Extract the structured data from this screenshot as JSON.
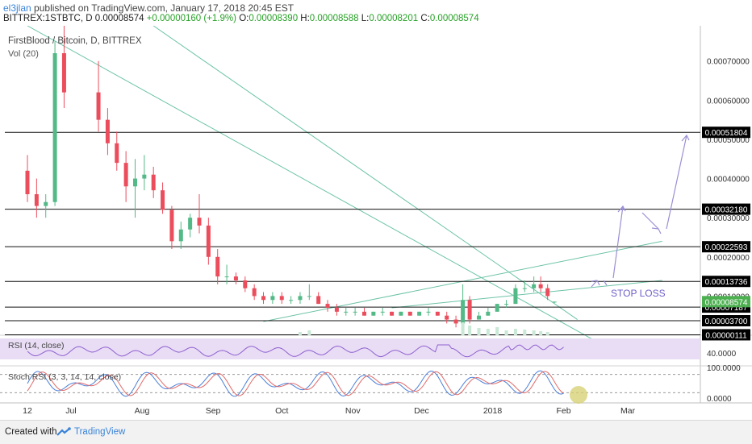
{
  "header": {
    "user": "el3jlan",
    "published": "published on TradingView.com, January 17, 2018 20:45 EST",
    "symbol": "BITTREX:1STBTC, D",
    "price": "0.00008574",
    "change": "+0.00000160 (+1.9%)",
    "o_label": "O:",
    "o": "0.00008390",
    "h_label": "H:",
    "h": "0.00008588",
    "l_label": "L:",
    "l": "0.00008201",
    "c_label": "C:",
    "c": "0.00008574"
  },
  "footer": {
    "created": "Created with",
    "brand": "TradingView"
  },
  "colors": {
    "up": "#53b987",
    "down": "#eb4d5c",
    "trend": "#6cc3a7",
    "arrow": "#9b8fd4",
    "axis_label_bg": "#000000",
    "price_label_bg": "#4caf50",
    "rsi": "#8f5fcf",
    "rsi_band": "#e9ddf5",
    "stoch_k": "#4a7fd8",
    "stoch_d": "#e06a6a",
    "circle": "#d6cf6e"
  },
  "chart_data": [
    {
      "type": "candlestick",
      "title": "FirstBlood / Bitcoin, D, BITTREX",
      "indicator_label": "Vol (20)",
      "x_ticks": [
        "12",
        "Jul",
        "Aug",
        "Sep",
        "Oct",
        "Nov",
        "Dec",
        "2018",
        "Feb",
        "Mar"
      ],
      "y_ticks": [
        "0.00070000",
        "0.00060000",
        "0.00050000",
        "0.00040000",
        "0.00030000",
        "0.00020000",
        "0.00010000"
      ],
      "ylim": [
        0.0,
        0.00079
      ],
      "horizontal_levels": [
        "0.00051804",
        "0.00032180",
        "0.00022593",
        "0.00013736",
        "0.00007187",
        "0.00003700",
        "0.00000111"
      ],
      "last_price": "0.00008574",
      "annotation": "STOP LOSS",
      "ohlc": [
        {
          "date": "Jun 12",
          "o": 0.00042,
          "h": 0.00046,
          "l": 0.00034,
          "c": 0.00036
        },
        {
          "date": "Jun 16",
          "o": 0.00036,
          "h": 0.0004,
          "l": 0.0003,
          "c": 0.00033
        },
        {
          "date": "Jun 20",
          "o": 0.00033,
          "h": 0.00036,
          "l": 0.0003,
          "c": 0.00034
        },
        {
          "date": "Jun 24",
          "o": 0.00034,
          "h": 0.00075,
          "l": 0.00033,
          "c": 0.00072
        },
        {
          "date": "Jun 28",
          "o": 0.00072,
          "h": 0.00079,
          "l": 0.00058,
          "c": 0.00062
        },
        {
          "date": "Jul 2",
          "o": 0.00062,
          "h": 0.0007,
          "l": 0.00052,
          "c": 0.00055
        },
        {
          "date": "Jul 6",
          "o": 0.00055,
          "h": 0.00058,
          "l": 0.00046,
          "c": 0.00049
        },
        {
          "date": "Jul 10",
          "o": 0.00049,
          "h": 0.00052,
          "l": 0.00042,
          "c": 0.00044
        },
        {
          "date": "Jul 14",
          "o": 0.00044,
          "h": 0.00047,
          "l": 0.00034,
          "c": 0.00038
        },
        {
          "date": "Jul 18",
          "o": 0.00038,
          "h": 0.00045,
          "l": 0.0003,
          "c": 0.0004
        },
        {
          "date": "Jul 22",
          "o": 0.0004,
          "h": 0.00046,
          "l": 0.00037,
          "c": 0.00041
        },
        {
          "date": "Jul 26",
          "o": 0.00041,
          "h": 0.00043,
          "l": 0.00035,
          "c": 0.00037
        },
        {
          "date": "Jul 30",
          "o": 0.00037,
          "h": 0.00039,
          "l": 0.00031,
          "c": 0.00032
        },
        {
          "date": "Aug 3",
          "o": 0.00032,
          "h": 0.00033,
          "l": 0.00022,
          "c": 0.00024
        },
        {
          "date": "Aug 7",
          "o": 0.00024,
          "h": 0.00029,
          "l": 0.00022,
          "c": 0.00027
        },
        {
          "date": "Aug 11",
          "o": 0.00027,
          "h": 0.00031,
          "l": 0.00025,
          "c": 0.0003
        },
        {
          "date": "Aug 15",
          "o": 0.0003,
          "h": 0.00036,
          "l": 0.00026,
          "c": 0.00028
        },
        {
          "date": "Aug 19",
          "o": 0.00028,
          "h": 0.0003,
          "l": 0.00018,
          "c": 0.0002
        },
        {
          "date": "Aug 23",
          "o": 0.0002,
          "h": 0.00022,
          "l": 0.00013,
          "c": 0.00015
        },
        {
          "date": "Aug 27",
          "o": 0.00015,
          "h": 0.00018,
          "l": 0.00013,
          "c": 0.00015
        },
        {
          "date": "Aug 31",
          "o": 0.00015,
          "h": 0.00016,
          "l": 0.00013,
          "c": 0.00014
        },
        {
          "date": "Sep 4",
          "o": 0.00014,
          "h": 0.00015,
          "l": 0.00011,
          "c": 0.00012
        },
        {
          "date": "Sep 8",
          "o": 0.00012,
          "h": 0.00013,
          "l": 9e-05,
          "c": 0.0001
        },
        {
          "date": "Sep 12",
          "o": 0.0001,
          "h": 0.00011,
          "l": 8e-05,
          "c": 9e-05
        },
        {
          "date": "Sep 16",
          "o": 9e-05,
          "h": 0.00011,
          "l": 8e-05,
          "c": 0.0001
        },
        {
          "date": "Sep 20",
          "o": 0.0001,
          "h": 0.00011,
          "l": 8e-05,
          "c": 9e-05
        },
        {
          "date": "Sep 24",
          "o": 9e-05,
          "h": 0.0001,
          "l": 8e-05,
          "c": 9e-05
        },
        {
          "date": "Sep 28",
          "o": 9e-05,
          "h": 0.00011,
          "l": 8e-05,
          "c": 0.0001
        },
        {
          "date": "Oct 2",
          "o": 0.0001,
          "h": 0.00013,
          "l": 9e-05,
          "c": 0.0001
        },
        {
          "date": "Oct 6",
          "o": 0.0001,
          "h": 0.00011,
          "l": 8e-05,
          "c": 8e-05
        },
        {
          "date": "Oct 10",
          "o": 8e-05,
          "h": 9e-05,
          "l": 6e-05,
          "c": 7e-05
        },
        {
          "date": "Oct 14",
          "o": 7e-05,
          "h": 8e-05,
          "l": 5e-05,
          "c": 6e-05
        },
        {
          "date": "Oct 18",
          "o": 6e-05,
          "h": 7e-05,
          "l": 5e-05,
          "c": 6e-05
        },
        {
          "date": "Oct 22",
          "o": 6e-05,
          "h": 7e-05,
          "l": 5e-05,
          "c": 6e-05
        },
        {
          "date": "Oct 26",
          "o": 6e-05,
          "h": 7e-05,
          "l": 5e-05,
          "c": 5e-05
        },
        {
          "date": "Oct 30",
          "o": 5e-05,
          "h": 6e-05,
          "l": 5e-05,
          "c": 6e-05
        },
        {
          "date": "Nov 3",
          "o": 6e-05,
          "h": 7e-05,
          "l": 5e-05,
          "c": 6e-05
        },
        {
          "date": "Nov 7",
          "o": 6e-05,
          "h": 6e-05,
          "l": 5e-05,
          "c": 5e-05
        },
        {
          "date": "Nov 11",
          "o": 5e-05,
          "h": 6e-05,
          "l": 5e-05,
          "c": 6e-05
        },
        {
          "date": "Nov 15",
          "o": 6e-05,
          "h": 6e-05,
          "l": 5e-05,
          "c": 5e-05
        },
        {
          "date": "Nov 19",
          "o": 5e-05,
          "h": 6e-05,
          "l": 5e-05,
          "c": 6e-05
        },
        {
          "date": "Nov 23",
          "o": 6e-05,
          "h": 7e-05,
          "l": 5e-05,
          "c": 6e-05
        },
        {
          "date": "Nov 27",
          "o": 6e-05,
          "h": 6e-05,
          "l": 5e-05,
          "c": 5e-05
        },
        {
          "date": "Dec 1",
          "o": 5e-05,
          "h": 6e-05,
          "l": 3e-05,
          "c": 4e-05
        },
        {
          "date": "Dec 5",
          "o": 4e-05,
          "h": 5e-05,
          "l": 2e-05,
          "c": 3e-05
        },
        {
          "date": "Dec 8",
          "o": 3e-05,
          "h": 0.00013,
          "l": 3e-05,
          "c": 9e-05
        },
        {
          "date": "Dec 11",
          "o": 9e-05,
          "h": 0.0001,
          "l": 3e-05,
          "c": 4e-05
        },
        {
          "date": "Dec 15",
          "o": 4e-05,
          "h": 6e-05,
          "l": 4e-05,
          "c": 5e-05
        },
        {
          "date": "Dec 19",
          "o": 5e-05,
          "h": 7e-05,
          "l": 5e-05,
          "c": 6e-05
        },
        {
          "date": "Dec 23",
          "o": 6e-05,
          "h": 8e-05,
          "l": 6e-05,
          "c": 8e-05
        },
        {
          "date": "Dec 27",
          "o": 8e-05,
          "h": 9e-05,
          "l": 7e-05,
          "c": 8e-05
        },
        {
          "date": "Dec 31",
          "o": 8e-05,
          "h": 0.00013,
          "l": 8e-05,
          "c": 0.00012
        },
        {
          "date": "Jan 4",
          "o": 0.00012,
          "h": 0.00014,
          "l": 0.00011,
          "c": 0.00012
        },
        {
          "date": "Jan 8",
          "o": 0.00012,
          "h": 0.00015,
          "l": 0.00011,
          "c": 0.00013
        },
        {
          "date": "Jan 11",
          "o": 0.00013,
          "h": 0.00015,
          "l": 0.00011,
          "c": 0.00012
        },
        {
          "date": "Jan 14",
          "o": 0.00012,
          "h": 0.00013,
          "l": 9e-05,
          "c": 0.0001
        },
        {
          "date": "Jan 17",
          "o": 8.39e-05,
          "h": 8.59e-05,
          "l": 8.2e-05,
          "c": 8.57e-05
        }
      ]
    },
    {
      "type": "line",
      "title": "RSI (14, close)",
      "y_ticks": [
        "40.0000"
      ],
      "ylim": [
        20,
        90
      ]
    },
    {
      "type": "line",
      "title": "Stoch RSI (3, 3, 14, 14, close)",
      "y_ticks": [
        "100.0000",
        "0.0000"
      ],
      "ylim": [
        0,
        100
      ]
    }
  ]
}
